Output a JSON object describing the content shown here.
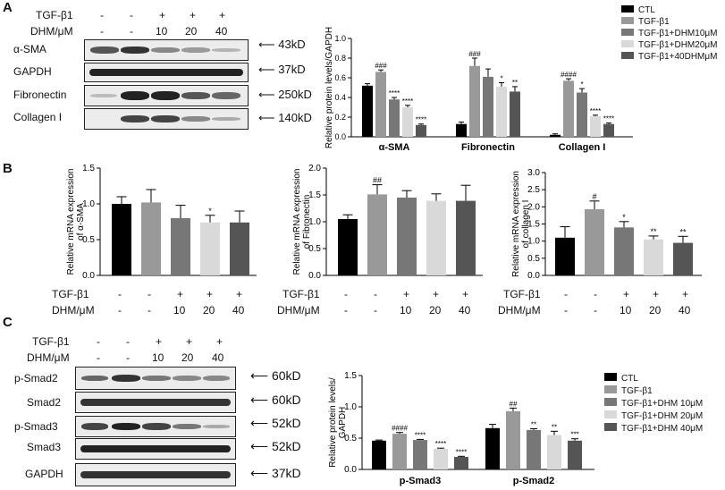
{
  "panels": {
    "a": "A",
    "b": "B",
    "c": "C"
  },
  "colors": {
    "ctl": "#000000",
    "tgf": "#999999",
    "d10": "#777777",
    "d20": "#d9d9d9",
    "d40": "#555555"
  },
  "panel_a": {
    "conditions": {
      "row1_label": "TGF-β1",
      "row1_values": [
        "-",
        "-",
        "+",
        "+",
        "+"
      ],
      "row2_label": "DHM/μM",
      "row2_values": [
        "-",
        "-",
        "10",
        "20",
        "40"
      ]
    },
    "blots": [
      {
        "name": "α-SMA",
        "size": "43kD"
      },
      {
        "name": "GAPDH",
        "size": "37kD"
      },
      {
        "name": "Fibronectin",
        "size": "250kD"
      },
      {
        "name": "Collagen I",
        "size": "140kD"
      }
    ],
    "legend": [
      "CTL",
      "TGF-β1",
      "TGF-β1+DHM10μM",
      "TGF-β1+DHM20μM",
      "TGF-β1+40DHMμM"
    ]
  },
  "panel_b": {
    "conditions": {
      "row1_label": "TGF-β1",
      "row1_values": [
        "-",
        "-",
        "+",
        "+",
        "+"
      ],
      "row2_label": "DHM/μM",
      "row2_values": [
        "-",
        "-",
        "10",
        "20",
        "40"
      ]
    }
  },
  "panel_c": {
    "conditions": {
      "row1_label": "TGF-β1",
      "row1_values": [
        "-",
        "-",
        "+",
        "+",
        "+"
      ],
      "row2_label": "DHM/μM",
      "row2_values": [
        "-",
        "-",
        "10",
        "20",
        "40"
      ]
    },
    "blots": [
      {
        "name": "p-Smad2",
        "size": "60kD"
      },
      {
        "name": "Smad2",
        "size": "60kD"
      },
      {
        "name": "p-Smad3",
        "size": "52kD"
      },
      {
        "name": "Smad3",
        "size": "52kD"
      },
      {
        "name": "GAPDH",
        "size": "37kD"
      }
    ],
    "legend": [
      "CTL",
      "TGF-β1",
      "TGF-β1+DHM 10μM",
      "TGF-β1+DHM 20μM",
      "TGF-β1+DHM 40μM"
    ]
  },
  "chart_data": [
    {
      "id": "a_protein",
      "type": "bar",
      "ylabel": "Relative protein levels/GAPDH",
      "ylim": [
        0,
        1.0
      ],
      "yticks": [
        "0.0",
        "0.2",
        "0.4",
        "0.6",
        "0.8",
        "1.0"
      ],
      "categories": [
        "α-SMA",
        "Fibronectin",
        "Collagen I"
      ],
      "series": [
        {
          "name": "CTL",
          "values": [
            0.52,
            0.13,
            0.02
          ],
          "errors": [
            0.02,
            0.02,
            0.01
          ],
          "sig": [
            "",
            "",
            ""
          ]
        },
        {
          "name": "TGF-β1",
          "values": [
            0.66,
            0.72,
            0.57
          ],
          "errors": [
            0.02,
            0.08,
            0.02
          ],
          "sig": [
            "###",
            "###",
            "####"
          ]
        },
        {
          "name": "TGF-β1+DHM10μM",
          "values": [
            0.38,
            0.61,
            0.45
          ],
          "errors": [
            0.02,
            0.08,
            0.04
          ],
          "sig": [
            "****",
            "",
            "*"
          ]
        },
        {
          "name": "TGF-β1+DHM20μM",
          "values": [
            0.3,
            0.51,
            0.21
          ],
          "errors": [
            0.02,
            0.04,
            0.01
          ],
          "sig": [
            "****",
            "*",
            "****"
          ]
        },
        {
          "name": "TGF-β1+40DHMμM",
          "values": [
            0.12,
            0.46,
            0.13
          ],
          "errors": [
            0.01,
            0.05,
            0.01
          ],
          "sig": [
            "****",
            "**",
            "****"
          ]
        }
      ]
    },
    {
      "id": "b_asma",
      "type": "bar",
      "ylabel": "Relative mRNA expression of α-SMA",
      "ylim": [
        0,
        1.5
      ],
      "yticks": [
        "0.0",
        "0.5",
        "1.0",
        "1.5"
      ],
      "values": [
        1.0,
        1.02,
        0.8,
        0.74,
        0.74
      ],
      "errors": [
        0.1,
        0.18,
        0.18,
        0.1,
        0.16
      ],
      "sig": [
        "",
        "",
        "",
        "*",
        ""
      ]
    },
    {
      "id": "b_fn",
      "type": "bar",
      "ylabel": "Relative mRNA expression of Fibronectin",
      "ylim": [
        0,
        2.0
      ],
      "yticks": [
        "0.0",
        "0.5",
        "1.0",
        "1.5",
        "2.0"
      ],
      "values": [
        1.05,
        1.51,
        1.45,
        1.39,
        1.39
      ],
      "errors": [
        0.08,
        0.18,
        0.13,
        0.13,
        0.29
      ],
      "sig": [
        "",
        "##",
        "",
        "",
        ""
      ]
    },
    {
      "id": "b_col",
      "type": "bar",
      "ylabel": "Relative mRNA expression of collagen I",
      "ylim": [
        0,
        3.0
      ],
      "yticks": [
        "0.0",
        "0.5",
        "1.0",
        "1.5",
        "2.0",
        "2.5",
        "3.0"
      ],
      "values": [
        1.1,
        1.93,
        1.4,
        1.05,
        0.95
      ],
      "errors": [
        0.32,
        0.24,
        0.17,
        0.1,
        0.19
      ],
      "sig": [
        "",
        "#",
        "*",
        "**",
        "**"
      ]
    },
    {
      "id": "c_protein",
      "type": "bar",
      "ylabel": "Relative protein levels/ GAPDH",
      "ylim": [
        0,
        1.5
      ],
      "yticks": [
        "0.0",
        "0.5",
        "1.0",
        "1.5"
      ],
      "categories": [
        "p-Smad3",
        "p-Smad2"
      ],
      "series": [
        {
          "name": "CTL",
          "values": [
            0.46,
            0.66
          ],
          "errors": [
            0.01,
            0.06
          ],
          "sig": [
            "",
            ""
          ]
        },
        {
          "name": "TGF-β1",
          "values": [
            0.57,
            0.93
          ],
          "errors": [
            0.02,
            0.05
          ],
          "sig": [
            "####",
            "##"
          ]
        },
        {
          "name": "TGF-β1+DHM 10μM",
          "values": [
            0.47,
            0.63
          ],
          "errors": [
            0.01,
            0.02
          ],
          "sig": [
            "****",
            "**"
          ]
        },
        {
          "name": "TGF-β1+DHM 20μM",
          "values": [
            0.33,
            0.55
          ],
          "errors": [
            0.01,
            0.06
          ],
          "sig": [
            "****",
            "**"
          ]
        },
        {
          "name": "TGF-β1+DHM 40μM",
          "values": [
            0.2,
            0.46
          ],
          "errors": [
            0.01,
            0.03
          ],
          "sig": [
            "****",
            "***"
          ]
        }
      ]
    }
  ]
}
